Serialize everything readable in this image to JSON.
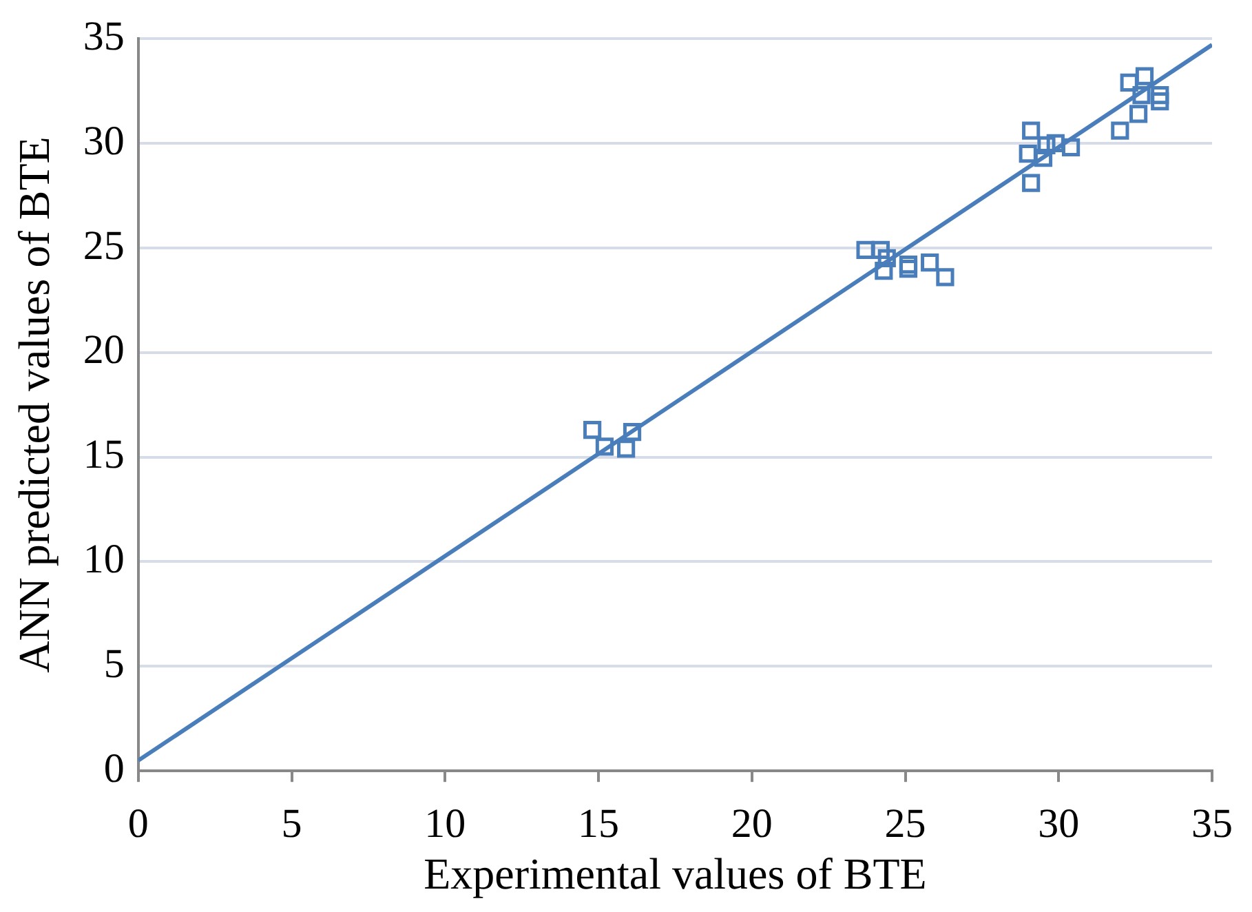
{
  "chart_data": {
    "type": "scatter",
    "xlabel": "Experimental values of BTE",
    "ylabel": "ANN predicted values of BTE",
    "xlim": [
      0,
      35
    ],
    "ylim": [
      0,
      35
    ],
    "xticks": [
      0,
      5,
      10,
      15,
      20,
      25,
      30,
      35
    ],
    "yticks": [
      0,
      5,
      10,
      15,
      20,
      25,
      30,
      35
    ],
    "grid": "y",
    "marker": "square",
    "series": [
      {
        "color": "#4a7ebb",
        "x": [
          14.8,
          15.2,
          15.9,
          16.1,
          23.7,
          24.2,
          24.4,
          24.3,
          25.1,
          25.8,
          26.3,
          25.1,
          29.0,
          29.1,
          29.1,
          29.5,
          29.9,
          30.4,
          29.6,
          32.0,
          32.3,
          32.6,
          32.8,
          33.3,
          33.3,
          32.7
        ],
        "values": [
          16.3,
          15.5,
          15.4,
          16.2,
          24.9,
          24.9,
          24.5,
          23.9,
          24.0,
          24.3,
          23.6,
          24.2,
          29.5,
          30.6,
          28.1,
          29.3,
          30.0,
          29.8,
          29.9,
          30.6,
          32.9,
          31.4,
          33.2,
          32.0,
          32.3,
          32.3
        ]
      },
      {
        "type": "line",
        "color": "#4a7ebb",
        "marker": "none",
        "x": [
          0,
          35
        ],
        "values": [
          0.5,
          34.7
        ]
      }
    ]
  }
}
